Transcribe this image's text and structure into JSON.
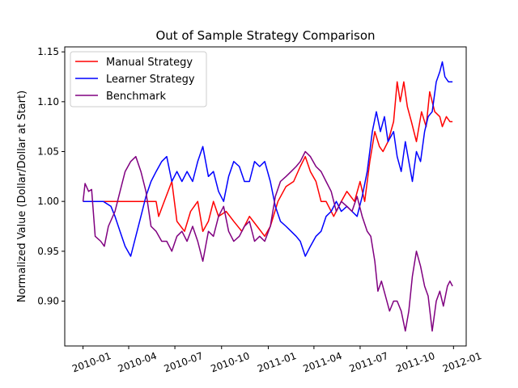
{
  "chart_data": {
    "type": "line",
    "title": "Out of Sample Strategy Comparison",
    "xlabel": "",
    "ylabel": "Normalized Value (Dollar/Dollar at Start)",
    "xlim": [
      "2009-11-26",
      "2012-01-26"
    ],
    "ylim": [
      0.855,
      1.155
    ],
    "yticks": [
      0.9,
      0.95,
      1.0,
      1.05,
      1.1,
      1.15
    ],
    "ytick_labels": [
      "0.90",
      "0.95",
      "1.00",
      "1.05",
      "1.10",
      "1.15"
    ],
    "xticks": [
      "2010-01-01",
      "2010-04-01",
      "2010-07-01",
      "2010-10-01",
      "2011-01-01",
      "2011-04-01",
      "2011-07-01",
      "2011-10-01",
      "2012-01-01"
    ],
    "xtick_labels": [
      "2010-01",
      "2010-04",
      "2010-07",
      "2010-10",
      "2011-01",
      "2011-04",
      "2011-07",
      "2011-10",
      "2012-01"
    ],
    "legend_position": "top-left",
    "grid": false,
    "series": [
      {
        "name": "Manual Strategy",
        "color": "#ff0000",
        "points": [
          [
            "2010-01-01",
            1.0
          ],
          [
            "2010-03-01",
            1.0
          ],
          [
            "2010-05-25",
            1.0
          ],
          [
            "2010-05-30",
            0.985
          ],
          [
            "2010-06-10",
            1.0
          ],
          [
            "2010-06-25",
            1.02
          ],
          [
            "2010-07-05",
            0.98
          ],
          [
            "2010-07-20",
            0.97
          ],
          [
            "2010-08-01",
            0.99
          ],
          [
            "2010-08-15",
            1.0
          ],
          [
            "2010-08-25",
            0.97
          ],
          [
            "2010-09-05",
            0.98
          ],
          [
            "2010-09-15",
            1.0
          ],
          [
            "2010-09-25",
            0.985
          ],
          [
            "2010-10-10",
            0.99
          ],
          [
            "2010-10-25",
            0.98
          ],
          [
            "2010-11-10",
            0.97
          ],
          [
            "2010-11-25",
            0.985
          ],
          [
            "2010-12-10",
            0.975
          ],
          [
            "2010-12-25",
            0.965
          ],
          [
            "2011-01-05",
            0.975
          ],
          [
            "2011-01-20",
            1.0
          ],
          [
            "2011-02-05",
            1.015
          ],
          [
            "2011-02-20",
            1.02
          ],
          [
            "2011-03-05",
            1.035
          ],
          [
            "2011-03-15",
            1.045
          ],
          [
            "2011-03-25",
            1.03
          ],
          [
            "2011-04-05",
            1.02
          ],
          [
            "2011-04-15",
            1.0
          ],
          [
            "2011-04-25",
            1.0
          ],
          [
            "2011-05-10",
            0.985
          ],
          [
            "2011-05-25",
            1.0
          ],
          [
            "2011-06-05",
            1.01
          ],
          [
            "2011-06-20",
            1.0
          ],
          [
            "2011-07-01",
            1.02
          ],
          [
            "2011-07-10",
            1.0
          ],
          [
            "2011-07-20",
            1.04
          ],
          [
            "2011-07-30",
            1.07
          ],
          [
            "2011-08-08",
            1.055
          ],
          [
            "2011-08-15",
            1.05
          ],
          [
            "2011-08-25",
            1.06
          ],
          [
            "2011-09-05",
            1.08
          ],
          [
            "2011-09-12",
            1.12
          ],
          [
            "2011-09-18",
            1.1
          ],
          [
            "2011-09-25",
            1.12
          ],
          [
            "2011-10-02",
            1.095
          ],
          [
            "2011-10-10",
            1.08
          ],
          [
            "2011-10-20",
            1.06
          ],
          [
            "2011-10-30",
            1.09
          ],
          [
            "2011-11-08",
            1.075
          ],
          [
            "2011-11-15",
            1.11
          ],
          [
            "2011-11-25",
            1.09
          ],
          [
            "2011-12-05",
            1.085
          ],
          [
            "2011-12-10",
            1.075
          ],
          [
            "2011-12-18",
            1.085
          ],
          [
            "2011-12-25",
            1.08
          ],
          [
            "2011-12-30",
            1.08
          ]
        ]
      },
      {
        "name": "Learner Strategy",
        "color": "#0000ff",
        "points": [
          [
            "2010-01-01",
            1.0
          ],
          [
            "2010-02-10",
            1.0
          ],
          [
            "2010-02-25",
            0.995
          ],
          [
            "2010-03-05",
            0.985
          ],
          [
            "2010-03-15",
            0.97
          ],
          [
            "2010-03-25",
            0.955
          ],
          [
            "2010-04-05",
            0.945
          ],
          [
            "2010-04-15",
            0.965
          ],
          [
            "2010-04-25",
            0.985
          ],
          [
            "2010-05-05",
            1.005
          ],
          [
            "2010-05-15",
            1.02
          ],
          [
            "2010-05-25",
            1.03
          ],
          [
            "2010-06-05",
            1.04
          ],
          [
            "2010-06-15",
            1.045
          ],
          [
            "2010-06-25",
            1.02
          ],
          [
            "2010-07-05",
            1.03
          ],
          [
            "2010-07-15",
            1.02
          ],
          [
            "2010-07-25",
            1.03
          ],
          [
            "2010-08-05",
            1.02
          ],
          [
            "2010-08-15",
            1.04
          ],
          [
            "2010-08-25",
            1.055
          ],
          [
            "2010-09-05",
            1.025
          ],
          [
            "2010-09-15",
            1.03
          ],
          [
            "2010-09-25",
            1.01
          ],
          [
            "2010-10-05",
            1.0
          ],
          [
            "2010-10-15",
            1.025
          ],
          [
            "2010-10-25",
            1.04
          ],
          [
            "2010-11-05",
            1.035
          ],
          [
            "2010-11-15",
            1.02
          ],
          [
            "2010-11-25",
            1.02
          ],
          [
            "2010-12-05",
            1.04
          ],
          [
            "2010-12-15",
            1.035
          ],
          [
            "2010-12-25",
            1.04
          ],
          [
            "2011-01-05",
            1.02
          ],
          [
            "2011-01-15",
            0.995
          ],
          [
            "2011-01-25",
            0.98
          ],
          [
            "2011-02-05",
            0.975
          ],
          [
            "2011-02-15",
            0.97
          ],
          [
            "2011-02-25",
            0.965
          ],
          [
            "2011-03-05",
            0.96
          ],
          [
            "2011-03-15",
            0.945
          ],
          [
            "2011-03-25",
            0.955
          ],
          [
            "2011-04-05",
            0.965
          ],
          [
            "2011-04-15",
            0.97
          ],
          [
            "2011-04-25",
            0.985
          ],
          [
            "2011-05-05",
            0.99
          ],
          [
            "2011-05-15",
            1.0
          ],
          [
            "2011-05-25",
            0.99
          ],
          [
            "2011-06-05",
            0.995
          ],
          [
            "2011-06-15",
            0.99
          ],
          [
            "2011-06-25",
            0.985
          ],
          [
            "2011-07-05",
            1.005
          ],
          [
            "2011-07-15",
            1.03
          ],
          [
            "2011-07-25",
            1.07
          ],
          [
            "2011-08-02",
            1.09
          ],
          [
            "2011-08-10",
            1.07
          ],
          [
            "2011-08-18",
            1.085
          ],
          [
            "2011-08-25",
            1.06
          ],
          [
            "2011-09-05",
            1.07
          ],
          [
            "2011-09-12",
            1.045
          ],
          [
            "2011-09-20",
            1.03
          ],
          [
            "2011-09-28",
            1.06
          ],
          [
            "2011-10-05",
            1.04
          ],
          [
            "2011-10-12",
            1.02
          ],
          [
            "2011-10-20",
            1.05
          ],
          [
            "2011-10-28",
            1.04
          ],
          [
            "2011-11-05",
            1.07
          ],
          [
            "2011-11-12",
            1.085
          ],
          [
            "2011-11-20",
            1.09
          ],
          [
            "2011-11-28",
            1.12
          ],
          [
            "2011-12-05",
            1.13
          ],
          [
            "2011-12-10",
            1.14
          ],
          [
            "2011-12-15",
            1.125
          ],
          [
            "2011-12-22",
            1.12
          ],
          [
            "2011-12-30",
            1.12
          ]
        ]
      },
      {
        "name": "Benchmark",
        "color": "#800080",
        "points": [
          [
            "2010-01-01",
            1.0
          ],
          [
            "2010-01-05",
            1.018
          ],
          [
            "2010-01-12",
            1.01
          ],
          [
            "2010-01-18",
            1.012
          ],
          [
            "2010-01-25",
            0.965
          ],
          [
            "2010-02-05",
            0.96
          ],
          [
            "2010-02-12",
            0.955
          ],
          [
            "2010-02-20",
            0.975
          ],
          [
            "2010-03-05",
            0.99
          ],
          [
            "2010-03-15",
            1.01
          ],
          [
            "2010-03-25",
            1.03
          ],
          [
            "2010-04-05",
            1.04
          ],
          [
            "2010-04-15",
            1.045
          ],
          [
            "2010-04-25",
            1.03
          ],
          [
            "2010-05-05",
            1.01
          ],
          [
            "2010-05-15",
            0.975
          ],
          [
            "2010-05-25",
            0.97
          ],
          [
            "2010-06-05",
            0.96
          ],
          [
            "2010-06-15",
            0.96
          ],
          [
            "2010-06-25",
            0.95
          ],
          [
            "2010-07-05",
            0.965
          ],
          [
            "2010-07-15",
            0.97
          ],
          [
            "2010-07-25",
            0.96
          ],
          [
            "2010-08-05",
            0.975
          ],
          [
            "2010-08-15",
            0.96
          ],
          [
            "2010-08-25",
            0.94
          ],
          [
            "2010-09-05",
            0.97
          ],
          [
            "2010-09-15",
            0.965
          ],
          [
            "2010-09-25",
            0.985
          ],
          [
            "2010-10-05",
            0.995
          ],
          [
            "2010-10-15",
            0.97
          ],
          [
            "2010-10-25",
            0.96
          ],
          [
            "2010-11-05",
            0.965
          ],
          [
            "2010-11-15",
            0.975
          ],
          [
            "2010-11-25",
            0.98
          ],
          [
            "2010-12-05",
            0.96
          ],
          [
            "2010-12-15",
            0.965
          ],
          [
            "2010-12-25",
            0.96
          ],
          [
            "2011-01-05",
            0.975
          ],
          [
            "2011-01-15",
            1.005
          ],
          [
            "2011-01-25",
            1.02
          ],
          [
            "2011-02-05",
            1.025
          ],
          [
            "2011-02-15",
            1.03
          ],
          [
            "2011-02-25",
            1.035
          ],
          [
            "2011-03-05",
            1.04
          ],
          [
            "2011-03-15",
            1.05
          ],
          [
            "2011-03-25",
            1.045
          ],
          [
            "2011-04-05",
            1.035
          ],
          [
            "2011-04-15",
            1.03
          ],
          [
            "2011-04-25",
            1.02
          ],
          [
            "2011-05-05",
            1.01
          ],
          [
            "2011-05-15",
            0.99
          ],
          [
            "2011-05-25",
            1.0
          ],
          [
            "2011-06-05",
            0.995
          ],
          [
            "2011-06-15",
            0.99
          ],
          [
            "2011-06-25",
            1.005
          ],
          [
            "2011-07-05",
            0.985
          ],
          [
            "2011-07-15",
            0.97
          ],
          [
            "2011-07-22",
            0.965
          ],
          [
            "2011-07-30",
            0.94
          ],
          [
            "2011-08-05",
            0.91
          ],
          [
            "2011-08-12",
            0.92
          ],
          [
            "2011-08-20",
            0.905
          ],
          [
            "2011-08-28",
            0.89
          ],
          [
            "2011-09-05",
            0.9
          ],
          [
            "2011-09-12",
            0.9
          ],
          [
            "2011-09-20",
            0.89
          ],
          [
            "2011-09-28",
            0.87
          ],
          [
            "2011-10-05",
            0.89
          ],
          [
            "2011-10-12",
            0.925
          ],
          [
            "2011-10-20",
            0.95
          ],
          [
            "2011-10-28",
            0.935
          ],
          [
            "2011-11-05",
            0.915
          ],
          [
            "2011-11-12",
            0.905
          ],
          [
            "2011-11-20",
            0.87
          ],
          [
            "2011-11-28",
            0.9
          ],
          [
            "2011-12-05",
            0.91
          ],
          [
            "2011-12-12",
            0.895
          ],
          [
            "2011-12-20",
            0.915
          ],
          [
            "2011-12-25",
            0.92
          ],
          [
            "2011-12-30",
            0.915
          ]
        ]
      }
    ]
  }
}
